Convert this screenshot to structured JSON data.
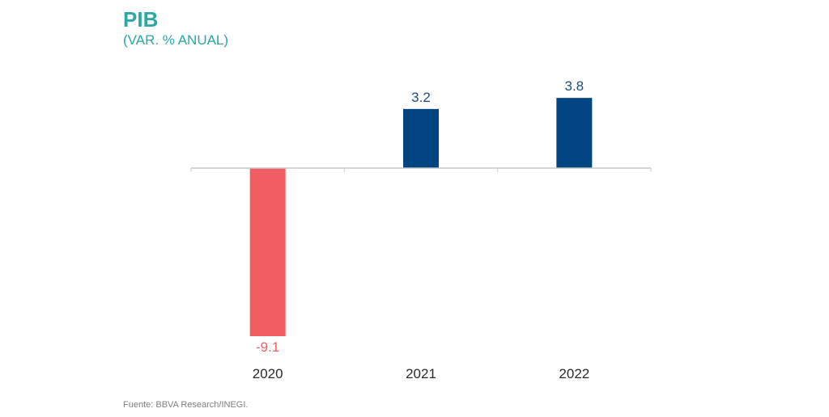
{
  "header": {
    "title": "PIB",
    "subtitle": "(VAR. % ANUAL)"
  },
  "footer": {
    "source": "Fuente: BBVA Research/INEGI."
  },
  "chart_data": {
    "type": "bar",
    "title": "PIB",
    "subtitle": "(VAR. % ANUAL)",
    "categories": [
      "2020",
      "2021",
      "2022"
    ],
    "values": [
      -9.1,
      3.2,
      3.8
    ],
    "value_labels": [
      "-9.1",
      "3.2",
      "3.8"
    ],
    "bar_colors": [
      "#f05e63",
      "#004481",
      "#004481"
    ],
    "label_colors": [
      "#f05e63",
      "#1f4e79",
      "#1f4e79"
    ],
    "xlabel": "",
    "ylabel": "",
    "grid": false,
    "legend": "none"
  }
}
